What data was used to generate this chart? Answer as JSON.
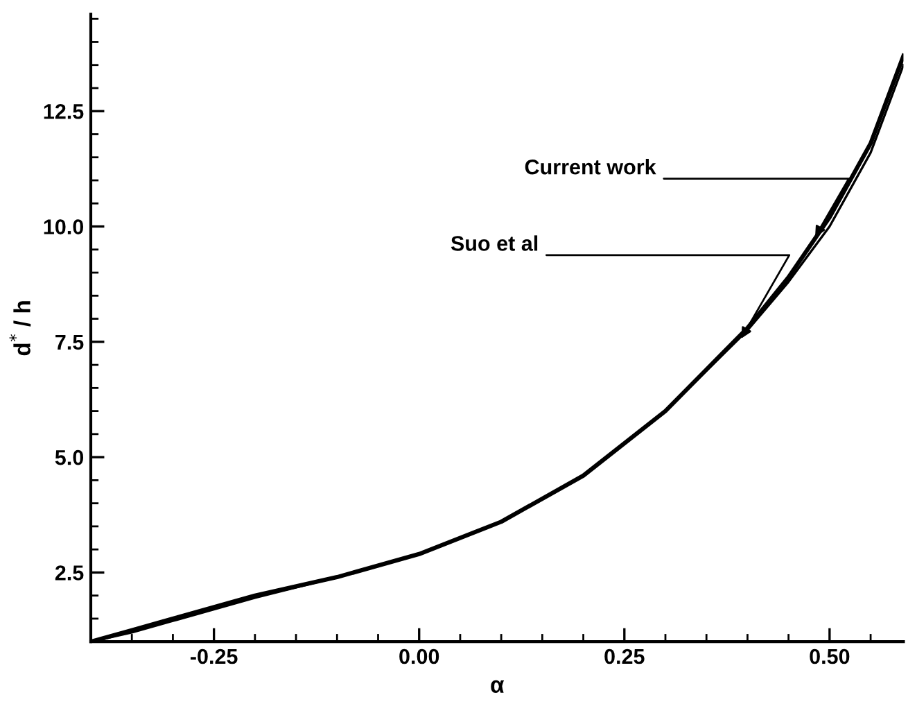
{
  "chart_data": {
    "type": "line",
    "xlabel": "α",
    "ylabel": "d$^{*}$ / h",
    "xlim": [
      -0.4,
      0.59
    ],
    "ylim": [
      1.0,
      14.6
    ],
    "xticks": [
      {
        "value": -0.35,
        "label": null
      },
      {
        "value": -0.3,
        "label": null
      },
      {
        "value": -0.25,
        "label": "-0.25"
      },
      {
        "value": -0.2,
        "label": null
      },
      {
        "value": -0.15,
        "label": null
      },
      {
        "value": -0.1,
        "label": null
      },
      {
        "value": -0.05,
        "label": null
      },
      {
        "value": 0.0,
        "label": "0.00"
      },
      {
        "value": 0.05,
        "label": null
      },
      {
        "value": 0.1,
        "label": null
      },
      {
        "value": 0.15,
        "label": null
      },
      {
        "value": 0.2,
        "label": null
      },
      {
        "value": 0.25,
        "label": "0.25"
      },
      {
        "value": 0.3,
        "label": null
      },
      {
        "value": 0.35,
        "label": null
      },
      {
        "value": 0.4,
        "label": null
      },
      {
        "value": 0.45,
        "label": null
      },
      {
        "value": 0.5,
        "label": "0.50"
      },
      {
        "value": 0.55,
        "label": null
      }
    ],
    "yticks": [
      {
        "value": 1.5,
        "label": null
      },
      {
        "value": 2.0,
        "label": null
      },
      {
        "value": 2.5,
        "label": "2.5"
      },
      {
        "value": 3.0,
        "label": null
      },
      {
        "value": 3.5,
        "label": null
      },
      {
        "value": 4.0,
        "label": null
      },
      {
        "value": 4.5,
        "label": null
      },
      {
        "value": 5.0,
        "label": "5.0"
      },
      {
        "value": 5.5,
        "label": null
      },
      {
        "value": 6.0,
        "label": null
      },
      {
        "value": 6.5,
        "label": null
      },
      {
        "value": 7.0,
        "label": null
      },
      {
        "value": 7.5,
        "label": "7.5"
      },
      {
        "value": 8.0,
        "label": null
      },
      {
        "value": 8.5,
        "label": null
      },
      {
        "value": 9.0,
        "label": null
      },
      {
        "value": 9.5,
        "label": null
      },
      {
        "value": 10.0,
        "label": "10.0"
      },
      {
        "value": 10.5,
        "label": null
      },
      {
        "value": 11.0,
        "label": null
      },
      {
        "value": 11.5,
        "label": null
      },
      {
        "value": 12.0,
        "label": null
      },
      {
        "value": 12.5,
        "label": "12.5"
      },
      {
        "value": 13.0,
        "label": null
      },
      {
        "value": 13.5,
        "label": null
      },
      {
        "value": 14.0,
        "label": null
      },
      {
        "value": 14.5,
        "label": null
      }
    ],
    "grid": false,
    "legend": false,
    "series": [
      {
        "color": "#000000",
        "line_style": "solid",
        "x": [
          -0.4,
          -0.35,
          -0.3,
          -0.2,
          -0.1,
          0.0,
          0.1,
          0.2,
          0.3,
          0.4,
          0.45,
          0.5,
          0.55,
          0.59
        ],
        "values": [
          1.0,
          1.25,
          1.5,
          2.0,
          2.4,
          2.9,
          3.6,
          4.6,
          6.0,
          7.8,
          8.9,
          10.2,
          11.8,
          13.7
        ]
      },
      {
        "color": "#000000",
        "line_style": "solid",
        "x": [
          -0.4,
          -0.35,
          -0.3,
          -0.2,
          -0.1,
          0.0,
          0.1,
          0.2,
          0.3,
          0.4,
          0.45,
          0.5,
          0.55,
          0.59
        ],
        "values": [
          1.0,
          1.2,
          1.45,
          1.95,
          2.4,
          2.9,
          3.6,
          4.6,
          6.0,
          7.75,
          8.8,
          10.0,
          11.6,
          13.5
        ]
      }
    ],
    "annotations": [
      {
        "text": "Current work",
        "x": 0.48,
        "y": 9.7
      },
      {
        "text": "Suo et al",
        "x": 0.39,
        "y": 7.5
      }
    ]
  }
}
